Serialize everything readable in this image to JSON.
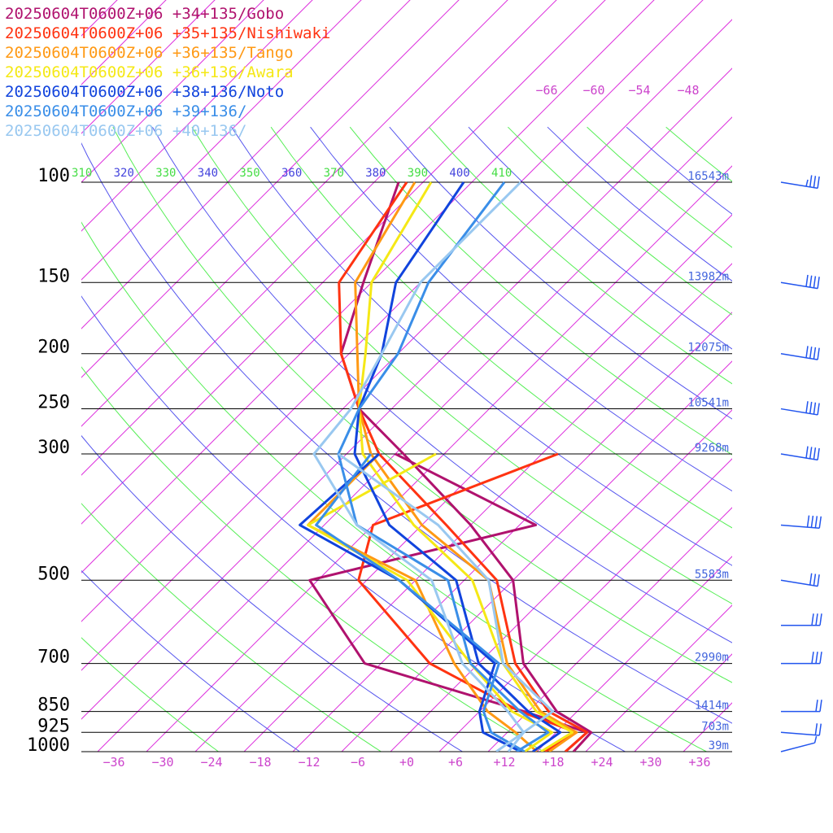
{
  "chart_data": {
    "type": "line",
    "chart_kind": "Skew-T log-P upper-air sounding (temperature and dew point profiles)",
    "legend": [
      {
        "label": "20250604T0600Z+06 +34+135/Gobo",
        "color": "#b0126e"
      },
      {
        "label": "20250604T0600Z+06 +35+135/Nishiwaki",
        "color": "#ff3311"
      },
      {
        "label": "20250604T0600Z+06 +36+135/Tango",
        "color": "#ff9914"
      },
      {
        "label": "20250604T0600Z+06 +36+136/Awara",
        "color": "#f5e816"
      },
      {
        "label": "20250604T0600Z+06 +38+136/Noto",
        "color": "#1144dd"
      },
      {
        "label": "20250604T0600Z+06 +39+136/",
        "color": "#3a8ee8"
      },
      {
        "label": "20250604T0600Z+06 +40+136/",
        "color": "#99c8f0"
      }
    ],
    "pressure_levels": [
      {
        "p": 100,
        "label": "100",
        "height": "16543m"
      },
      {
        "p": 150,
        "label": "150",
        "height": "13982m"
      },
      {
        "p": 200,
        "label": "200",
        "height": "12075m"
      },
      {
        "p": 250,
        "label": "250",
        "height": "10541m"
      },
      {
        "p": 300,
        "label": "300",
        "height": "9268m"
      },
      {
        "p": 500,
        "label": "500",
        "height": "5583m"
      },
      {
        "p": 700,
        "label": "700",
        "height": "2990m"
      },
      {
        "p": 850,
        "label": "850",
        "height": "1414m"
      },
      {
        "p": 925,
        "label": "925",
        "height": "703m"
      },
      {
        "p": 1000,
        "label": "1000",
        "height": "39m"
      }
    ],
    "x_tick_labels": [
      "−36",
      "−30",
      "−24",
      "−18",
      "−12",
      "−6",
      "+0",
      "+6",
      "+12",
      "+18",
      "+24",
      "+30",
      "+36"
    ],
    "upper_temp_labels": [
      "−66",
      "−60",
      "−54",
      "−48"
    ],
    "theta_labels": [
      "310",
      "320",
      "330",
      "340",
      "350",
      "360",
      "370",
      "380",
      "390",
      "400",
      "410"
    ],
    "x_range_temp_at_1000": [
      -40,
      40
    ],
    "y_range_pressure": [
      1000,
      100
    ],
    "y_scale": "log",
    "series": [
      {
        "name": "20250604T0600Z+06 +34+135/Gobo",
        "temperature": [
          [
            1000,
            20.5
          ],
          [
            925,
            20.3
          ],
          [
            850,
            13.5
          ],
          [
            700,
            3.5
          ],
          [
            500,
            -8
          ],
          [
            400,
            -20
          ],
          [
            300,
            -37
          ],
          [
            250,
            -48
          ],
          [
            200,
            -57
          ],
          [
            150,
            -63
          ],
          [
            100,
            -71
          ]
        ],
        "dewpoint": [
          [
            1000,
            19.5
          ],
          [
            925,
            19.8
          ],
          [
            850,
            9.5
          ],
          [
            700,
            -16
          ],
          [
            500,
            -33
          ],
          [
            400,
            -12
          ],
          [
            300,
            -38
          ]
        ]
      },
      {
        "name": "20250604T0600Z+06 +35+135/Nishiwaki",
        "temperature": [
          [
            1000,
            19.5
          ],
          [
            925,
            19.8
          ],
          [
            850,
            12.5
          ],
          [
            700,
            2.5
          ],
          [
            500,
            -10
          ],
          [
            400,
            -23
          ],
          [
            300,
            -40
          ],
          [
            250,
            -48
          ],
          [
            200,
            -57
          ],
          [
            150,
            -66
          ],
          [
            100,
            -70
          ]
        ],
        "dewpoint": [
          [
            1000,
            17
          ],
          [
            925,
            18.5
          ],
          [
            850,
            9
          ],
          [
            700,
            -8
          ],
          [
            500,
            -27
          ],
          [
            400,
            -32
          ],
          [
            300,
            -18
          ]
        ]
      },
      {
        "name": "20250604T0600Z+06 +36+135/Tango",
        "temperature": [
          [
            1000,
            17.5
          ],
          [
            925,
            18.5
          ],
          [
            850,
            11.5
          ],
          [
            700,
            1.5
          ],
          [
            500,
            -11
          ],
          [
            400,
            -26
          ],
          [
            300,
            -41
          ],
          [
            250,
            -48
          ],
          [
            200,
            -55
          ],
          [
            150,
            -64
          ],
          [
            100,
            -69
          ]
        ],
        "dewpoint": [
          [
            1000,
            16
          ],
          [
            925,
            11
          ],
          [
            850,
            5
          ],
          [
            700,
            -5
          ],
          [
            500,
            -20
          ],
          [
            400,
            -40
          ],
          [
            300,
            -40
          ]
        ]
      },
      {
        "name": "20250604T0600Z+06 +36+136/Awara",
        "temperature": [
          [
            1000,
            16.5
          ],
          [
            925,
            18
          ],
          [
            850,
            11
          ],
          [
            700,
            1
          ],
          [
            500,
            -13
          ],
          [
            400,
            -27
          ],
          [
            300,
            -42
          ],
          [
            250,
            -48
          ],
          [
            200,
            -54
          ],
          [
            150,
            -62
          ],
          [
            100,
            -67
          ]
        ],
        "dewpoint": [
          [
            1000,
            14.5
          ],
          [
            925,
            15.5
          ],
          [
            850,
            8
          ],
          [
            700,
            -3
          ],
          [
            500,
            -21
          ],
          [
            400,
            -40
          ],
          [
            300,
            -33
          ]
        ]
      },
      {
        "name": "20250604T0600Z+06 +38+136/Noto",
        "temperature": [
          [
            1000,
            15.5
          ],
          [
            925,
            16.5
          ],
          [
            850,
            10
          ],
          [
            700,
            -2
          ],
          [
            500,
            -15
          ],
          [
            400,
            -30
          ],
          [
            300,
            -43
          ],
          [
            250,
            -48
          ],
          [
            200,
            -52
          ],
          [
            150,
            -59
          ],
          [
            100,
            -63
          ]
        ],
        "dewpoint": [
          [
            1000,
            14
          ],
          [
            925,
            7
          ],
          [
            850,
            4
          ],
          [
            700,
            0
          ],
          [
            500,
            -22
          ],
          [
            400,
            -41
          ],
          [
            300,
            -40
          ]
        ]
      },
      {
        "name": "20250604T0600Z+06 +39+136/",
        "temperature": [
          [
            1000,
            13.5
          ],
          [
            925,
            15
          ],
          [
            850,
            9
          ],
          [
            700,
            -3
          ],
          [
            500,
            -16
          ],
          [
            400,
            -34
          ],
          [
            300,
            -45
          ],
          [
            250,
            -48
          ],
          [
            200,
            -50
          ],
          [
            150,
            -55
          ],
          [
            100,
            -58
          ]
        ],
        "dewpoint": [
          [
            1000,
            14.5
          ],
          [
            925,
            8
          ],
          [
            850,
            4.5
          ],
          [
            700,
            0.5
          ],
          [
            500,
            -22
          ],
          [
            400,
            -39
          ],
          [
            300,
            -41
          ]
        ]
      },
      {
        "name": "20250604T0600Z+06 +40+136/",
        "temperature": [
          [
            1000,
            11
          ],
          [
            925,
            12
          ],
          [
            850,
            7.5
          ],
          [
            700,
            -4
          ],
          [
            500,
            -18
          ],
          [
            400,
            -34
          ],
          [
            300,
            -48
          ],
          [
            250,
            -49
          ],
          [
            200,
            -52
          ],
          [
            150,
            -56
          ],
          [
            100,
            -56
          ]
        ],
        "dewpoint": [
          [
            1000,
            12.5
          ],
          [
            925,
            12
          ],
          [
            850,
            13
          ],
          [
            700,
            1
          ],
          [
            500,
            -11
          ],
          [
            400,
            -24
          ],
          [
            300,
            -45
          ]
        ]
      }
    ],
    "wind_barbs": [
      {
        "p": 100,
        "speed_kt": 35,
        "dir_deg": 290
      },
      {
        "p": 150,
        "speed_kt": 40,
        "dir_deg": 290
      },
      {
        "p": 200,
        "speed_kt": 40,
        "dir_deg": 290
      },
      {
        "p": 250,
        "speed_kt": 40,
        "dir_deg": 290
      },
      {
        "p": 300,
        "speed_kt": 40,
        "dir_deg": 290
      },
      {
        "p": 400,
        "speed_kt": 40,
        "dir_deg": 280
      },
      {
        "p": 500,
        "speed_kt": 30,
        "dir_deg": 290
      },
      {
        "p": 600,
        "speed_kt": 30,
        "dir_deg": 270
      },
      {
        "p": 700,
        "speed_kt": 30,
        "dir_deg": 270
      },
      {
        "p": 850,
        "speed_kt": 20,
        "dir_deg": 270
      },
      {
        "p": 925,
        "speed_kt": 20,
        "dir_deg": 280
      },
      {
        "p": 1000,
        "speed_kt": 5,
        "dir_deg": 240
      }
    ],
    "title": "",
    "xlabel": "",
    "ylabel": "",
    "grid": true
  }
}
